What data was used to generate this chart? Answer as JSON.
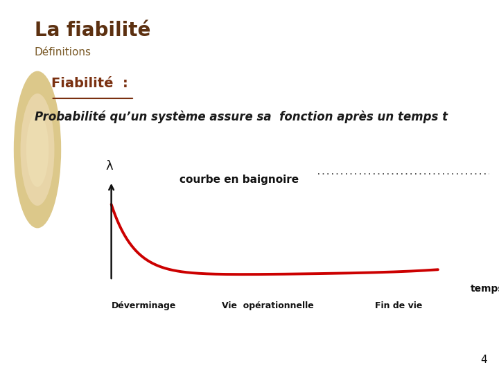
{
  "title": "La fiabilité",
  "subtitle": "Définitions",
  "fiabilite_label": "Fiabilité  :",
  "fiabilite_underline_text": "Fiabilité",
  "description": "Probabilité qu’un système assure sa  fonction après un temps t",
  "lambda_label": "λ",
  "courbe_label": "courbe en baignoire",
  "temps_label": "temps",
  "phase1_label": "Déverminage",
  "phase2_label": "Vie  opérationnelle",
  "phase3_label": "Fin de vie",
  "page_number": "4",
  "bg_color": "#ffffff",
  "left_strip_color": "#e8d5a8",
  "circle_outer_color": "#dcc88a",
  "circle_inner_color": "#ecdcb0",
  "title_color": "#5c3010",
  "subtitle_color": "#7a5a28",
  "fiabilite_color": "#7a3010",
  "description_color": "#1a1a1a",
  "curve_color": "#cc0000",
  "axis_color": "#111111",
  "label_color": "#111111",
  "dotted_color": "#333333"
}
